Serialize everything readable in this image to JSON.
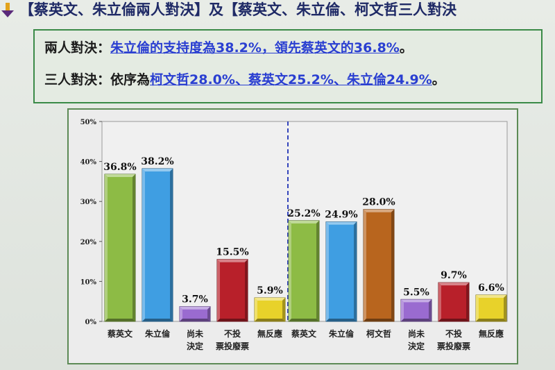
{
  "heading": {
    "text": "【蔡英文、朱立倫兩人對決】及【蔡英文、朱立倫、柯文哲三人對決"
  },
  "summary": {
    "two_way_label": "兩人對決：",
    "two_way_text": "朱立倫的支持度為38.2%，領先蔡英文的36.8%",
    "two_way_end": "。",
    "three_way_label": "三人對決：依序為",
    "three_way_a": "柯文哲28.0%",
    "three_way_b": "、蔡英文25.2%",
    "three_way_c": "、朱立倫24.9%",
    "three_way_end": "。"
  },
  "colors": {
    "green": "#8dbb45",
    "blue": "#3f9ee2",
    "purple": "#9a6bd0",
    "red": "#b8202a",
    "yellow": "#e8d22a",
    "orange": "#b8651e"
  },
  "chart_data": {
    "type": "bar",
    "ylim": [
      0,
      50
    ],
    "yticks": [
      "0%",
      "10%",
      "20%",
      "30%",
      "40%",
      "50%"
    ],
    "groups": [
      {
        "bars": [
          {
            "label": "蔡英文",
            "value": 36.8,
            "text": "36.8%",
            "color": "green"
          },
          {
            "label": "朱立倫",
            "value": 38.2,
            "text": "38.2%",
            "color": "blue"
          },
          {
            "label": "尚未決定",
            "value": 3.7,
            "text": "3.7%",
            "color": "purple"
          },
          {
            "label": "不投票投廢票",
            "value": 15.5,
            "text": "15.5%",
            "color": "red"
          },
          {
            "label": "無反應",
            "value": 5.9,
            "text": "5.9%",
            "color": "yellow"
          }
        ]
      },
      {
        "bars": [
          {
            "label": "蔡英文",
            "value": 25.2,
            "text": "25.2%",
            "color": "green"
          },
          {
            "label": "朱立倫",
            "value": 24.9,
            "text": "24.9%",
            "color": "blue"
          },
          {
            "label": "柯文哲",
            "value": 28.0,
            "text": "28.0%",
            "color": "orange"
          },
          {
            "label": "尚未決定",
            "value": 5.5,
            "text": "5.5%",
            "color": "purple"
          },
          {
            "label": "不投票投廢票",
            "value": 9.7,
            "text": "9.7%",
            "color": "red"
          },
          {
            "label": "無反應",
            "value": 6.6,
            "text": "6.6%",
            "color": "yellow"
          }
        ]
      }
    ]
  }
}
